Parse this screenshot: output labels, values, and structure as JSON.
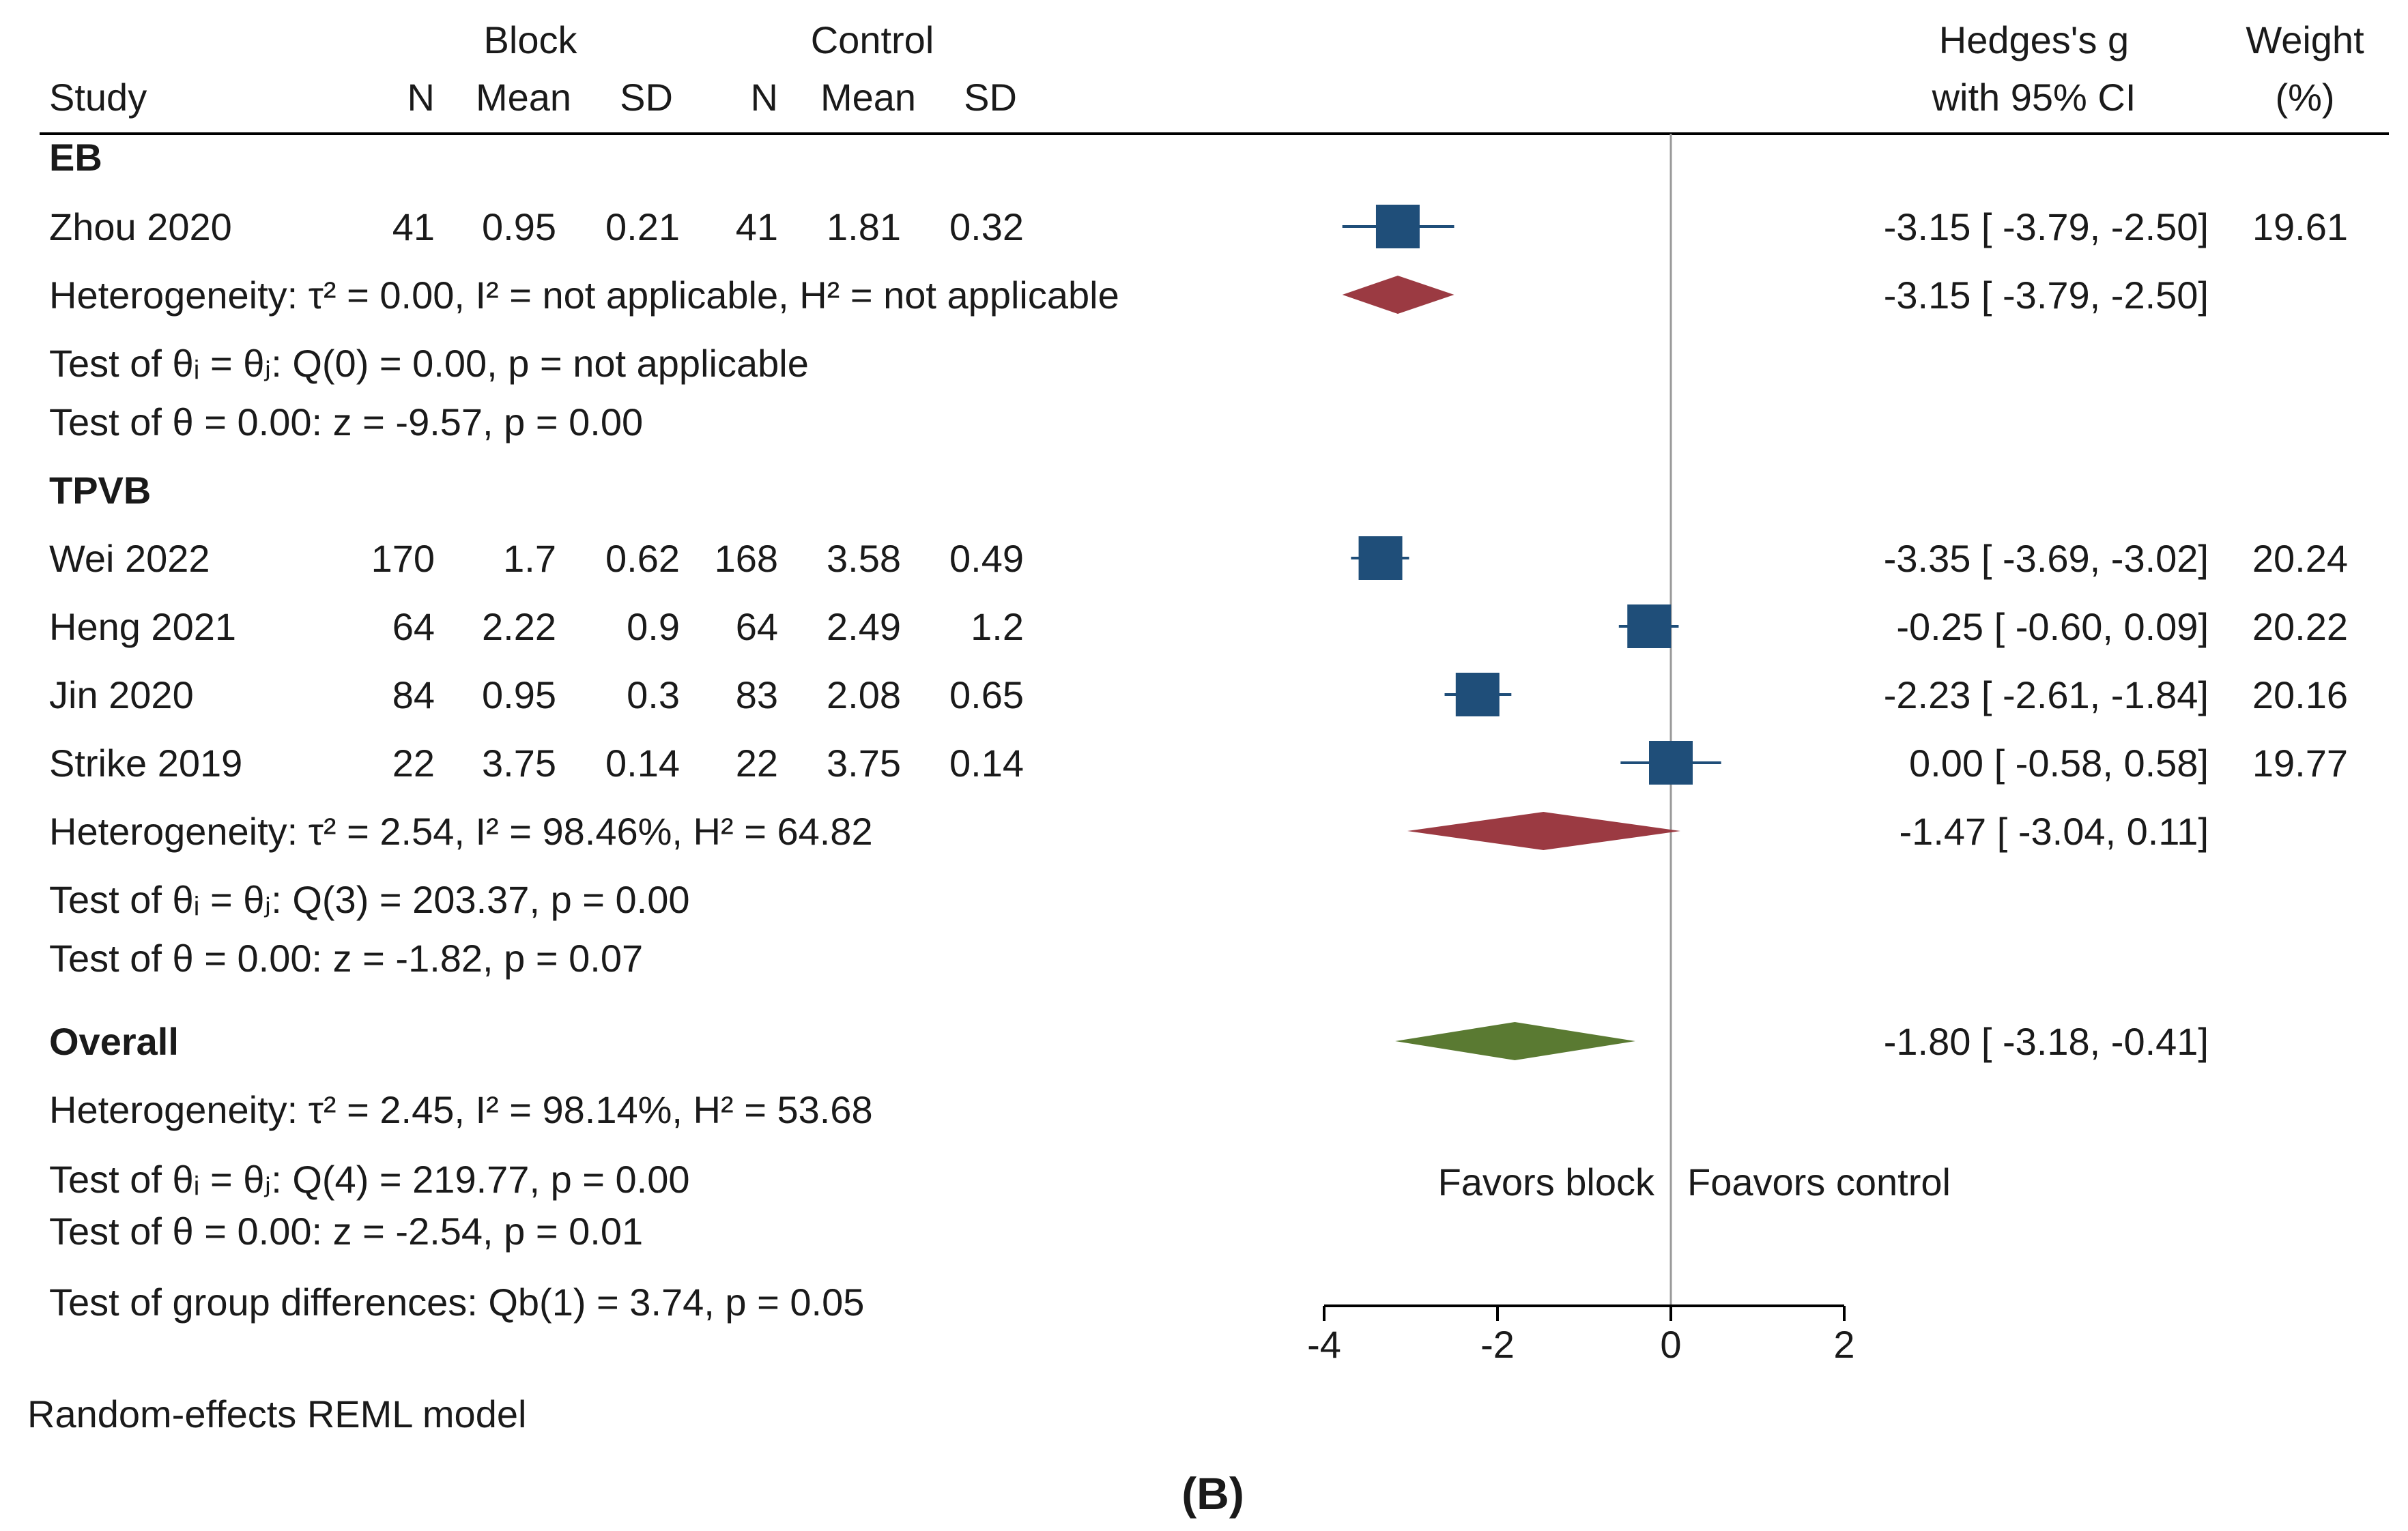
{
  "headers": {
    "study": "Study",
    "block_group": "Block",
    "control_group": "Control",
    "n": "N",
    "mean": "Mean",
    "sd": "SD",
    "effect_line1": "Hedges's g",
    "effect_line2": "with 95% CI",
    "weight_line1": "Weight",
    "weight_line2": "(%)"
  },
  "footnote": "Random-effects REML model",
  "caption": "(B)",
  "chart_data": {
    "type": "forest",
    "model": "Random-effects REML model",
    "xlim": [
      -4,
      2
    ],
    "xticks": [
      "-4",
      "-2",
      "0",
      "2"
    ],
    "null_line": 0,
    "favors_left": "Favors block",
    "favors_right": "Foavors control",
    "groups": [
      {
        "name": "EB",
        "studies": [
          {
            "label": "Zhou 2020",
            "b_n": "41",
            "b_mean": "0.95",
            "b_sd": "0.21",
            "c_n": "41",
            "c_mean": "1.81",
            "c_sd": "0.32",
            "g": -3.15,
            "lo": -3.79,
            "hi": -2.5,
            "ci_text": "-3.15 [ -3.79,  -2.50]",
            "weight": "19.61"
          }
        ],
        "pooled": {
          "g": -3.15,
          "lo": -3.79,
          "hi": -2.5,
          "ci_text": "-3.15 [ -3.79,  -2.50]"
        },
        "heterogeneity": "Heterogeneity: τ² = 0.00, I² = not applicable, H² = not applicable",
        "test_equal": "Test of θᵢ = θⱼ: Q(0) = 0.00, p = not applicable",
        "test_zero": "Test of θ = 0.00: z = -9.57, p = 0.00"
      },
      {
        "name": "TPVB",
        "studies": [
          {
            "label": "Wei 2022",
            "b_n": "170",
            "b_mean": "1.7",
            "b_sd": "0.62",
            "c_n": "168",
            "c_mean": "3.58",
            "c_sd": "0.49",
            "g": -3.35,
            "lo": -3.69,
            "hi": -3.02,
            "ci_text": "-3.35 [ -3.69,  -3.02]",
            "weight": "20.24"
          },
          {
            "label": "Heng 2021",
            "b_n": "64",
            "b_mean": "2.22",
            "b_sd": "0.9",
            "c_n": "64",
            "c_mean": "2.49",
            "c_sd": "1.2",
            "g": -0.25,
            "lo": -0.6,
            "hi": 0.09,
            "ci_text": "-0.25 [ -0.60,   0.09]",
            "weight": "20.22"
          },
          {
            "label": "Jin 2020",
            "b_n": "84",
            "b_mean": "0.95",
            "b_sd": "0.3",
            "c_n": "83",
            "c_mean": "2.08",
            "c_sd": "0.65",
            "g": -2.23,
            "lo": -2.61,
            "hi": -1.84,
            "ci_text": "-2.23 [ -2.61,  -1.84]",
            "weight": "20.16"
          },
          {
            "label": "Strike 2019",
            "b_n": "22",
            "b_mean": "3.75",
            "b_sd": "0.14",
            "c_n": "22",
            "c_mean": "3.75",
            "c_sd": "0.14",
            "g": 0.0,
            "lo": -0.58,
            "hi": 0.58,
            "ci_text": "0.00 [ -0.58,   0.58]",
            "weight": "19.77"
          }
        ],
        "pooled": {
          "g": -1.47,
          "lo": -3.04,
          "hi": 0.11,
          "ci_text": "-1.47 [ -3.04,   0.11]"
        },
        "heterogeneity": "Heterogeneity: τ² = 2.54, I² = 98.46%, H² = 64.82",
        "test_equal": "Test of θᵢ = θⱼ: Q(3) = 203.37, p = 0.00",
        "test_zero": "Test of θ = 0.00: z = -1.82, p = 0.07"
      }
    ],
    "overall": {
      "label": "Overall",
      "g": -1.8,
      "lo": -3.18,
      "hi": -0.41,
      "ci_text": "-1.80 [ -3.18,  -0.41]",
      "heterogeneity": "Heterogeneity: τ² = 2.45, I² = 98.14%, H² = 53.68",
      "test_equal": "Test of θᵢ = θⱼ: Q(4) = 219.77, p = 0.00",
      "test_zero": "Test of θ = 0.00: z = -2.54, p = 0.01",
      "group_diff": "Test of group differences: Q_b(1) = 3.74, p = 0.05"
    },
    "colors": {
      "study_box": "#1f4e79",
      "group_diamond": "#9b3a42",
      "overall_diamond": "#5a7a32",
      "null_line": "#999999",
      "rule": "#000000"
    }
  }
}
